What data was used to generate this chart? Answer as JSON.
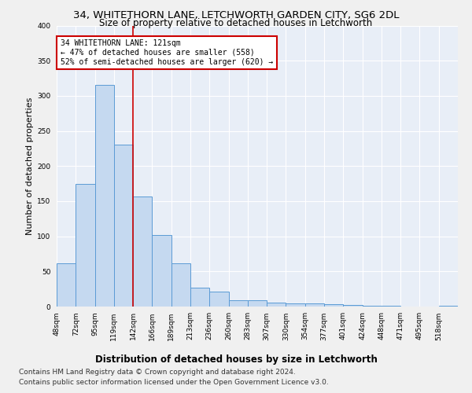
{
  "title1": "34, WHITETHORN LANE, LETCHWORTH GARDEN CITY, SG6 2DL",
  "title2": "Size of property relative to detached houses in Letchworth",
  "xlabel": "Distribution of detached houses by size in Letchworth",
  "ylabel": "Number of detached properties",
  "categories": [
    "48sqm",
    "72sqm",
    "95sqm",
    "119sqm",
    "142sqm",
    "166sqm",
    "189sqm",
    "213sqm",
    "236sqm",
    "260sqm",
    "283sqm",
    "307sqm",
    "330sqm",
    "354sqm",
    "377sqm",
    "401sqm",
    "424sqm",
    "448sqm",
    "471sqm",
    "495sqm",
    "518sqm"
  ],
  "values": [
    62,
    174,
    315,
    230,
    157,
    102,
    61,
    27,
    21,
    9,
    9,
    6,
    5,
    4,
    3,
    2,
    1,
    1,
    0,
    0,
    1
  ],
  "bar_color": "#c5d9f0",
  "bar_edge_color": "#5b9bd5",
  "vline_color": "#cc0000",
  "annotation_text": "34 WHITETHORN LANE: 121sqm\n← 47% of detached houses are smaller (558)\n52% of semi-detached houses are larger (620) →",
  "annotation_box_color": "#ffffff",
  "annotation_box_edge_color": "#cc0000",
  "footer1": "Contains HM Land Registry data © Crown copyright and database right 2024.",
  "footer2": "Contains public sector information licensed under the Open Government Licence v3.0.",
  "ylim": [
    0,
    400
  ],
  "yticks": [
    0,
    50,
    100,
    150,
    200,
    250,
    300,
    350,
    400
  ],
  "background_color": "#e8eef7",
  "grid_color": "#ffffff",
  "title1_fontsize": 9.5,
  "title2_fontsize": 8.5,
  "ylabel_fontsize": 8,
  "xlabel_fontsize": 8.5,
  "tick_fontsize": 6.5,
  "annotation_fontsize": 7,
  "footer_fontsize": 6.5
}
